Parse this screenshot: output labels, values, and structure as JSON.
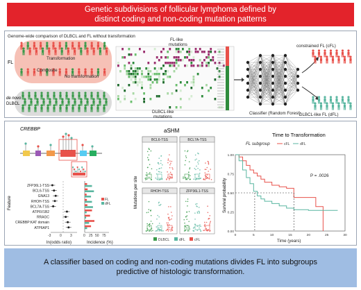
{
  "header": {
    "title_line1": "Genetic subdivisions of follicular lymphoma defined by",
    "title_line2": "distinct coding and non-coding mutation patterns"
  },
  "top_panel": {
    "caption": "Genome-wide comparison of DLBCL and FL without transformation",
    "fl_label": "FL",
    "transformation_label": "Transformation",
    "composite_label": "Composite",
    "no_transformation_label": "No transformation",
    "denovo_label_line1": "de novo",
    "denovo_label_line2": "DLBCL",
    "fl_like_label_line1": "FL-like",
    "fl_like_label_line2": "mutations",
    "dlbcl_like_label_line1": "DLBCL-like",
    "dlbcl_like_label_line2": "mutations",
    "classifier_label": "Classifier (Random Forest)",
    "cfl_label": "constrained FL (cFL)",
    "dfl_label": "DLBCL-like FL (dFL)"
  },
  "mid_panel": {
    "gene_label": "CREBBP",
    "forest_features": [
      "ZFP36L1-TSS",
      "BCL6-TSS",
      "GNA13",
      "RHOH-TSS",
      "BCL7A-TSS",
      "ATP6V1B2",
      "RRAGC",
      "CREBBP:KAT domain",
      "ATP6AP1"
    ],
    "feature_axis_label": "Feature",
    "odds_axis_label": "ln(odds ratio)",
    "odds_ticks": [
      "-3",
      "0",
      "3"
    ],
    "incidence_axis_label": "Incidence (%)",
    "incidence_ticks": [
      "0",
      "25",
      "50",
      "75"
    ],
    "incidence_legend": [
      "FL",
      "dFL"
    ],
    "ashm_title": "aSHM",
    "ashm_panels": [
      "BCL6-TSS",
      "BCL7A-TSS",
      "RHOH-TSS",
      "ZFP36L1-TSS"
    ],
    "ashm_ylabel": "Mutations per site",
    "ashm_legend": [
      "DLBCL",
      "dFL",
      "cFL"
    ],
    "km_title": "Time to Transformation",
    "km_legend_title": "FL subgroup",
    "km_legend": [
      "cFL",
      "dFL"
    ],
    "km_pvalue": "P = .0026",
    "km_ylabel": "Survival probability",
    "km_xlabel": "Time (years)",
    "km_yticks": [
      "1.00",
      "0.75",
      "0.50",
      "0.25",
      "0.00"
    ],
    "km_xticks": [
      "0",
      "5",
      "10",
      "15",
      "20",
      "25",
      "30"
    ]
  },
  "footer": {
    "line1": "A classifier based on coding and non-coding mutations divides FL into subgroups",
    "line2": "predictive of histologic transformation."
  },
  "colors": {
    "banner_red": "#e3232b",
    "footer_blue": "#9fbde3",
    "fl_pink": "#f4b7ad",
    "cfl_red": "#e8514a",
    "dfl_teal": "#59b6a0",
    "dlbcl_green": "#3a9a4a",
    "heatmap_green": "#2e8b3c"
  }
}
